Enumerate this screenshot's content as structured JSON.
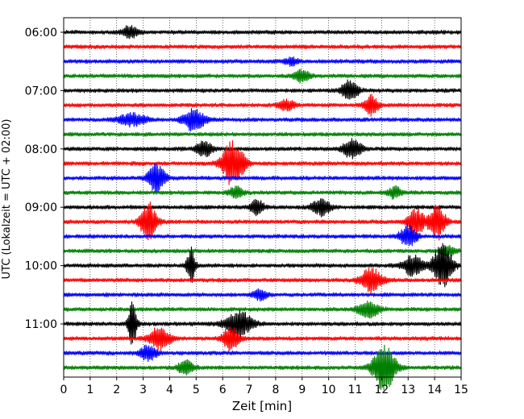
{
  "chart_data": {
    "type": "line",
    "xlabel": "Zeit  [min]",
    "ylabel": "UTC (Lokalzeit = UTC + 02:00)",
    "xlim": [
      0,
      15
    ],
    "x_ticks": [
      0,
      1,
      2,
      3,
      4,
      5,
      6,
      7,
      8,
      9,
      10,
      11,
      12,
      13,
      14,
      15
    ],
    "grid": "vertical dotted at each minute",
    "row_interval_min": 15,
    "start_time": "06:00",
    "hour_labels": [
      {
        "row": 0,
        "label": "06:00"
      },
      {
        "row": 4,
        "label": "07:00"
      },
      {
        "row": 8,
        "label": "08:00"
      },
      {
        "row": 12,
        "label": "09:00"
      },
      {
        "row": 16,
        "label": "10:00"
      },
      {
        "row": 20,
        "label": "11:00"
      }
    ],
    "trace_colors": [
      "#000000",
      "#ff0000",
      "#0000ff",
      "#008000"
    ],
    "traces": [
      {
        "start": "06:00",
        "events": [
          {
            "t": 2.5,
            "amp": 0.3,
            "dur": 0.6
          }
        ]
      },
      {
        "start": "06:15",
        "events": []
      },
      {
        "start": "06:30",
        "events": [
          {
            "t": 8.6,
            "amp": 0.2,
            "dur": 0.5
          }
        ]
      },
      {
        "start": "06:45",
        "events": [
          {
            "t": 9.0,
            "amp": 0.3,
            "dur": 0.6
          }
        ]
      },
      {
        "start": "07:00",
        "events": [
          {
            "t": 10.8,
            "amp": 0.5,
            "dur": 0.6
          }
        ]
      },
      {
        "start": "07:15",
        "events": [
          {
            "t": 8.4,
            "amp": 0.25,
            "dur": 0.6
          },
          {
            "t": 11.6,
            "amp": 0.5,
            "dur": 0.5
          }
        ]
      },
      {
        "start": "07:30",
        "events": [
          {
            "t": 2.6,
            "amp": 0.3,
            "dur": 1.0
          },
          {
            "t": 4.9,
            "amp": 0.55,
            "dur": 0.8
          }
        ]
      },
      {
        "start": "07:45",
        "events": []
      },
      {
        "start": "08:00",
        "events": [
          {
            "t": 5.3,
            "amp": 0.4,
            "dur": 0.6
          },
          {
            "t": 10.9,
            "amp": 0.5,
            "dur": 0.7
          }
        ]
      },
      {
        "start": "08:15",
        "events": [
          {
            "t": 6.4,
            "amp": 1.2,
            "dur": 0.8
          }
        ]
      },
      {
        "start": "08:30",
        "events": [
          {
            "t": 3.5,
            "amp": 0.75,
            "dur": 0.6
          }
        ]
      },
      {
        "start": "08:45",
        "events": [
          {
            "t": 6.5,
            "amp": 0.3,
            "dur": 0.5
          },
          {
            "t": 12.5,
            "amp": 0.3,
            "dur": 0.5
          }
        ]
      },
      {
        "start": "09:00",
        "events": [
          {
            "t": 7.3,
            "amp": 0.35,
            "dur": 0.5
          },
          {
            "t": 9.7,
            "amp": 0.4,
            "dur": 0.7
          }
        ]
      },
      {
        "start": "09:15",
        "events": [
          {
            "t": 3.2,
            "amp": 1.0,
            "dur": 0.6
          },
          {
            "t": 13.3,
            "amp": 0.7,
            "dur": 0.6
          },
          {
            "t": 14.1,
            "amp": 0.9,
            "dur": 0.6
          }
        ]
      },
      {
        "start": "09:30",
        "events": [
          {
            "t": 13.0,
            "amp": 0.6,
            "dur": 0.6
          }
        ]
      },
      {
        "start": "09:45",
        "events": [
          {
            "t": 14.5,
            "amp": 0.3,
            "dur": 0.5
          }
        ]
      },
      {
        "start": "10:00",
        "events": [
          {
            "t": 4.8,
            "amp": 0.9,
            "dur": 0.3
          },
          {
            "t": 13.2,
            "amp": 0.5,
            "dur": 0.8
          },
          {
            "t": 14.3,
            "amp": 1.1,
            "dur": 0.7
          }
        ]
      },
      {
        "start": "10:15",
        "events": [
          {
            "t": 11.6,
            "amp": 0.6,
            "dur": 0.8
          }
        ]
      },
      {
        "start": "10:30",
        "events": [
          {
            "t": 7.4,
            "amp": 0.3,
            "dur": 0.5
          }
        ]
      },
      {
        "start": "10:45",
        "events": [
          {
            "t": 11.5,
            "amp": 0.4,
            "dur": 0.8
          }
        ]
      },
      {
        "start": "11:00",
        "events": [
          {
            "t": 2.6,
            "amp": 1.3,
            "dur": 0.3
          },
          {
            "t": 6.6,
            "amp": 0.7,
            "dur": 1.0
          }
        ]
      },
      {
        "start": "11:15",
        "events": [
          {
            "t": 3.6,
            "amp": 0.55,
            "dur": 0.8
          },
          {
            "t": 6.3,
            "amp": 0.6,
            "dur": 0.6
          }
        ]
      },
      {
        "start": "11:30",
        "events": [
          {
            "t": 3.2,
            "amp": 0.4,
            "dur": 0.6
          }
        ]
      },
      {
        "start": "11:45",
        "events": [
          {
            "t": 4.6,
            "amp": 0.35,
            "dur": 0.6
          },
          {
            "t": 12.1,
            "amp": 1.3,
            "dur": 0.8
          }
        ]
      }
    ]
  }
}
